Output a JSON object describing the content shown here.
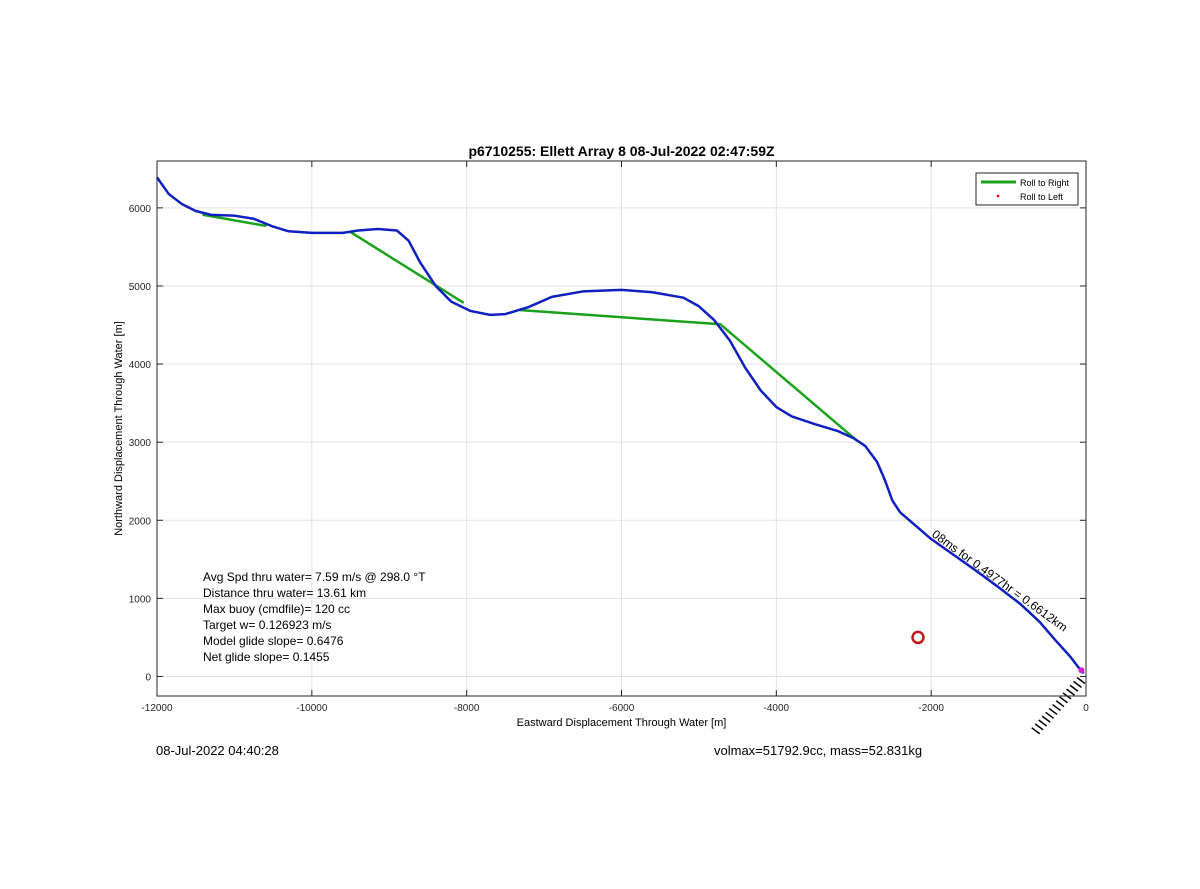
{
  "chart_data": {
    "type": "line",
    "title": "p6710255: Ellett Array 8 08-Jul-2022 02:47:59Z",
    "xlabel": "Eastward Displacement Through Water [m]",
    "ylabel": "Northward Displacement Through Water [m]",
    "xlim": [
      -12000,
      0
    ],
    "ylim": [
      -250,
      6600
    ],
    "xticks": [
      -12000,
      -10000,
      -8000,
      -6000,
      -4000,
      -2000,
      0
    ],
    "yticks": [
      0,
      1000,
      2000,
      3000,
      4000,
      5000,
      6000
    ],
    "grid": true,
    "legend_position": "top-right",
    "legend": [
      "Roll to Right",
      "Roll to Left"
    ],
    "series": [
      {
        "name": "Roll to Right",
        "color": "#1aa21a",
        "segments": [
          [
            [
              -11400,
              5910
            ],
            [
              -10600,
              5770
            ]
          ],
          [
            [
              -9500,
              5690
            ],
            [
              -8050,
              4790
            ]
          ],
          [
            [
              -7300,
              4690
            ],
            [
              -4720,
              4510
            ]
          ],
          [
            [
              -4700,
              4490
            ],
            [
              -2960,
              3020
            ]
          ]
        ]
      },
      {
        "name": "",
        "color": "#1020c0",
        "points": [
          [
            -12000,
            6390
          ],
          [
            -11850,
            6180
          ],
          [
            -11680,
            6050
          ],
          [
            -11500,
            5960
          ],
          [
            -11300,
            5910
          ],
          [
            -11000,
            5900
          ],
          [
            -10750,
            5860
          ],
          [
            -10500,
            5760
          ],
          [
            -10300,
            5700
          ],
          [
            -10000,
            5680
          ],
          [
            -9600,
            5680
          ],
          [
            -9400,
            5710
          ],
          [
            -9150,
            5730
          ],
          [
            -8900,
            5710
          ],
          [
            -8750,
            5580
          ],
          [
            -8600,
            5300
          ],
          [
            -8400,
            5000
          ],
          [
            -8200,
            4800
          ],
          [
            -7950,
            4680
          ],
          [
            -7700,
            4630
          ],
          [
            -7500,
            4640
          ],
          [
            -7200,
            4730
          ],
          [
            -6900,
            4860
          ],
          [
            -6500,
            4930
          ],
          [
            -6000,
            4950
          ],
          [
            -5600,
            4920
          ],
          [
            -5200,
            4850
          ],
          [
            -5000,
            4740
          ],
          [
            -4800,
            4560
          ],
          [
            -4600,
            4300
          ],
          [
            -4400,
            3950
          ],
          [
            -4200,
            3660
          ],
          [
            -4000,
            3450
          ],
          [
            -3800,
            3330
          ],
          [
            -3500,
            3230
          ],
          [
            -3200,
            3140
          ],
          [
            -3000,
            3050
          ],
          [
            -2850,
            2950
          ],
          [
            -2700,
            2750
          ],
          [
            -2600,
            2520
          ],
          [
            -2500,
            2250
          ],
          [
            -2400,
            2100
          ],
          [
            -2200,
            1930
          ],
          [
            -2000,
            1760
          ],
          [
            -1700,
            1550
          ],
          [
            -1400,
            1340
          ],
          [
            -1100,
            1120
          ],
          [
            -850,
            930
          ],
          [
            -600,
            700
          ],
          [
            -400,
            470
          ],
          [
            -200,
            250
          ],
          [
            -100,
            120
          ],
          [
            -30,
            40
          ]
        ]
      }
    ],
    "markers": [
      {
        "label": "red-circle-marker",
        "x": -2170,
        "y": 500,
        "color": "#c01818"
      },
      {
        "label": "magenta-end-marker",
        "x": -60,
        "y": 80,
        "color": "#d020d0"
      }
    ],
    "annotations": {
      "stats": [
        "Avg Spd thru water=  7.59 m/s @ 298.0 °T",
        "Distance thru water= 13.61 km",
        "Max buoy (cmdfile)= 120 cc",
        "Target w= 0.126923 m/s",
        "Model glide slope= 0.6476",
        "Net glide slope= 0.1455"
      ],
      "track_label": "08ms for 0.4977hr = 0.6612km"
    }
  },
  "footer": {
    "left": "08-Jul-2022 04:40:28",
    "right": "volmax=51792.9cc, mass=52.831kg"
  }
}
